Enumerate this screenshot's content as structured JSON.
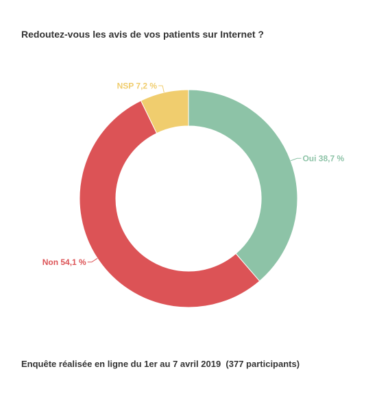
{
  "chart_data": {
    "type": "pie",
    "variant": "donut",
    "title": "Redoutez-vous les avis de vos patients sur Internet ?",
    "slices": [
      {
        "label": "Oui",
        "value": 38.7,
        "display": "Oui 38,7 %",
        "color": "#8dc3a7"
      },
      {
        "label": "Non",
        "value": 54.1,
        "display": "Non 54,1 %",
        "color": "#dc5356"
      },
      {
        "label": "NSP",
        "value": 7.2,
        "display": "NSP 7,2 %",
        "color": "#f0cd6e"
      }
    ],
    "legend": "none",
    "footnote": "Enquête réalisée en ligne du 1er au 7 avril 2019  (377 participants)"
  }
}
